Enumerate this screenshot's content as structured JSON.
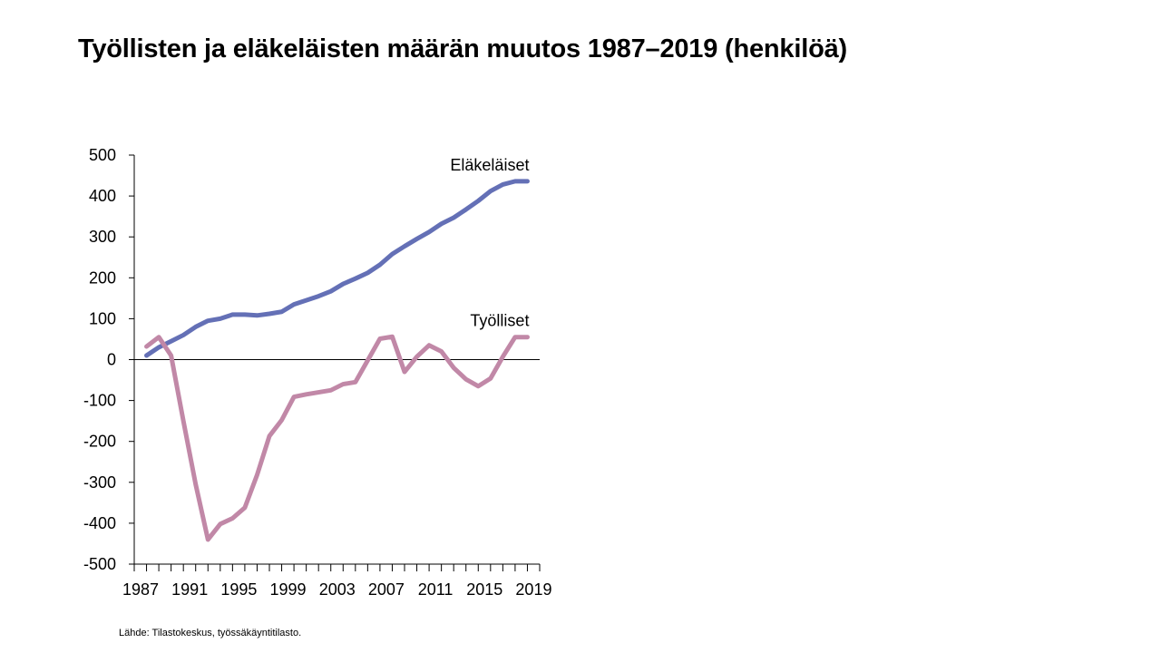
{
  "title": "Työllisten ja eläkeläisten määrän muutos 1987–2019 (henkilöä)",
  "source": "Lähde: Tilastokeskus, työssäkäyntitilasto.",
  "colors": {
    "elakelaiset": "#6470b6",
    "tyolliset": "#c188a7",
    "axis": "#000000"
  },
  "chart_data": {
    "type": "line",
    "title": "Työllisten ja eläkeläisten määrän muutos 1987–2019 (henkilöä)",
    "xlabel": "",
    "ylabel": "",
    "x": [
      1988,
      1989,
      1990,
      1991,
      1992,
      1993,
      1994,
      1995,
      1996,
      1997,
      1998,
      1999,
      2000,
      2001,
      2002,
      2003,
      2004,
      2005,
      2006,
      2007,
      2008,
      2009,
      2010,
      2011,
      2012,
      2013,
      2014,
      2015,
      2016,
      2017,
      2018,
      2019
    ],
    "xlim": [
      1987,
      2020
    ],
    "x_tick_labels": [
      "1987",
      "1991",
      "1995",
      "1999",
      "2003",
      "2007",
      "2011",
      "2015",
      "2019"
    ],
    "ylim": [
      -500,
      500
    ],
    "y_tick_labels": [
      "500",
      "400",
      "300",
      "200",
      "100",
      "0",
      "-100",
      "-200",
      "-300",
      "-400",
      "-500"
    ],
    "grid": false,
    "series": [
      {
        "name": "Eläkeläiset",
        "values": [
          10,
          30,
          45,
          60,
          80,
          95,
          100,
          110,
          110,
          108,
          112,
          117,
          135,
          145,
          155,
          167,
          185,
          198,
          212,
          232,
          258,
          277,
          295,
          312,
          332,
          347,
          367,
          388,
          412,
          428,
          436,
          436
        ]
      },
      {
        "name": "Työlliset",
        "values": [
          32,
          55,
          10,
          -150,
          -305,
          -440,
          -402,
          -388,
          -362,
          -282,
          -187,
          -148,
          -91,
          -85,
          -80,
          -75,
          -60,
          -55,
          -2,
          51,
          56,
          -30,
          7,
          35,
          20,
          -20,
          -48,
          -65,
          -46,
          7,
          55,
          55
        ]
      }
    ]
  }
}
